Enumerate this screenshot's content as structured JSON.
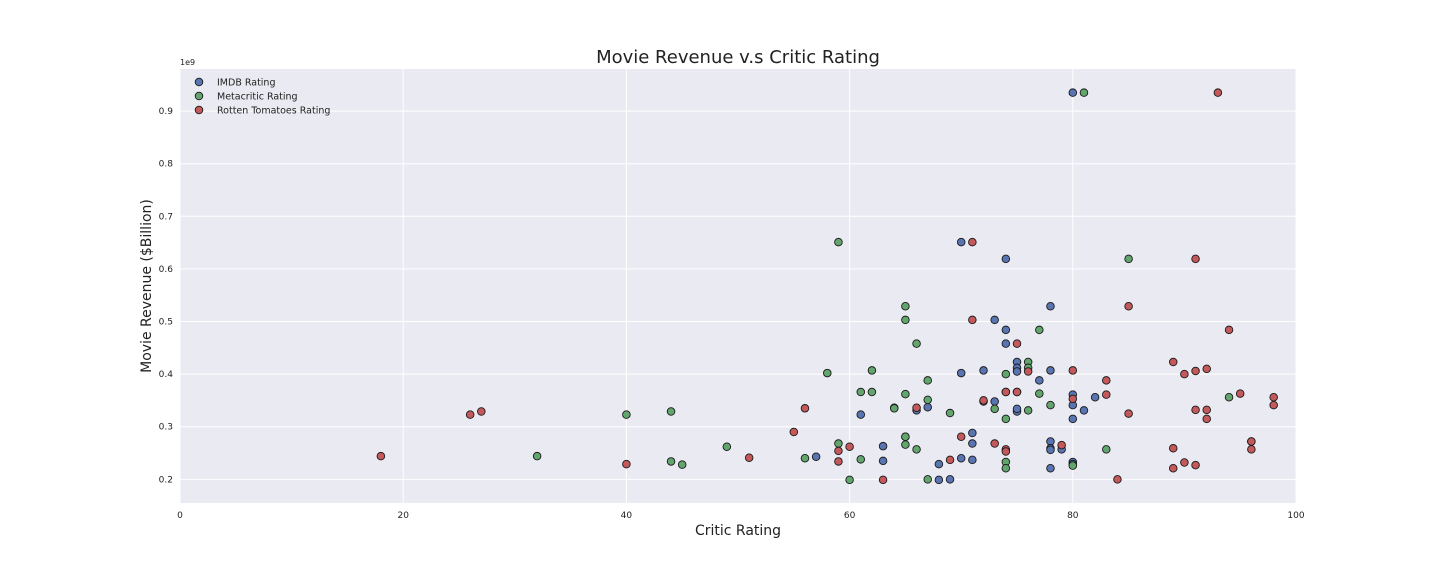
{
  "chart_data": {
    "type": "scatter",
    "title": "Movie Revenue v.s Critic Rating",
    "xlabel": "Critic Rating",
    "ylabel": "Movie Revenue ($Billion)",
    "y_exponent_label": "1e9",
    "xlim": [
      0,
      100
    ],
    "ylim": [
      0.155,
      0.98
    ],
    "x_ticks": [
      0,
      20,
      40,
      60,
      80,
      100
    ],
    "y_ticks": [
      0.2,
      0.3,
      0.4,
      0.5,
      0.6,
      0.7,
      0.8,
      0.9
    ],
    "grid": true,
    "legend_position": "top-left",
    "background_color": "#eaeaf2",
    "series": [
      {
        "name": "IMDB Rating",
        "color": "#5875b2",
        "points": [
          [
            80,
            0.935
          ],
          [
            70,
            0.651
          ],
          [
            74,
            0.619
          ],
          [
            78,
            0.529
          ],
          [
            73,
            0.503
          ],
          [
            74,
            0.484
          ],
          [
            74,
            0.458
          ],
          [
            75,
            0.423
          ],
          [
            75,
            0.412
          ],
          [
            75,
            0.405
          ],
          [
            72,
            0.407
          ],
          [
            70,
            0.402
          ],
          [
            78,
            0.407
          ],
          [
            77,
            0.388
          ],
          [
            74,
            0.366
          ],
          [
            75,
            0.366
          ],
          [
            80,
            0.361
          ],
          [
            82,
            0.356
          ],
          [
            73,
            0.348
          ],
          [
            72,
            0.348
          ],
          [
            80,
            0.341
          ],
          [
            64,
            0.336
          ],
          [
            67,
            0.337
          ],
          [
            66,
            0.331
          ],
          [
            75,
            0.329
          ],
          [
            81,
            0.331
          ],
          [
            61,
            0.323
          ],
          [
            75,
            0.334
          ],
          [
            80,
            0.315
          ],
          [
            71,
            0.288
          ],
          [
            65,
            0.281
          ],
          [
            78,
            0.272
          ],
          [
            71,
            0.268
          ],
          [
            63,
            0.263
          ],
          [
            78,
            0.259
          ],
          [
            78,
            0.256
          ],
          [
            79,
            0.257
          ],
          [
            57,
            0.243
          ],
          [
            70,
            0.24
          ],
          [
            71,
            0.237
          ],
          [
            63,
            0.235
          ],
          [
            80,
            0.233
          ],
          [
            68,
            0.229
          ],
          [
            80,
            0.229
          ],
          [
            78,
            0.221
          ],
          [
            68,
            0.199
          ],
          [
            69,
            0.2
          ]
        ]
      },
      {
        "name": "Metacritic Rating",
        "color": "#62a66e",
        "points": [
          [
            81,
            0.935
          ],
          [
            59,
            0.651
          ],
          [
            85,
            0.619
          ],
          [
            65,
            0.529
          ],
          [
            65,
            0.503
          ],
          [
            77,
            0.484
          ],
          [
            66,
            0.458
          ],
          [
            76,
            0.423
          ],
          [
            76,
            0.412
          ],
          [
            62,
            0.407
          ],
          [
            58,
            0.402
          ],
          [
            74,
            0.4
          ],
          [
            67,
            0.388
          ],
          [
            61,
            0.366
          ],
          [
            62,
            0.366
          ],
          [
            65,
            0.362
          ],
          [
            77,
            0.363
          ],
          [
            94,
            0.356
          ],
          [
            67,
            0.351
          ],
          [
            78,
            0.341
          ],
          [
            64,
            0.335
          ],
          [
            73,
            0.334
          ],
          [
            76,
            0.331
          ],
          [
            69,
            0.326
          ],
          [
            40,
            0.323
          ],
          [
            44,
            0.329
          ],
          [
            74,
            0.315
          ],
          [
            65,
            0.281
          ],
          [
            59,
            0.268
          ],
          [
            65,
            0.266
          ],
          [
            49,
            0.262
          ],
          [
            66,
            0.257
          ],
          [
            83,
            0.257
          ],
          [
            32,
            0.244
          ],
          [
            56,
            0.24
          ],
          [
            61,
            0.238
          ],
          [
            44,
            0.234
          ],
          [
            74,
            0.233
          ],
          [
            45,
            0.228
          ],
          [
            80,
            0.226
          ],
          [
            74,
            0.221
          ],
          [
            60,
            0.199
          ],
          [
            67,
            0.2
          ]
        ]
      },
      {
        "name": "Rotten Tomatoes Rating",
        "color": "#c4595b",
        "points": [
          [
            93,
            0.935
          ],
          [
            71,
            0.651
          ],
          [
            91,
            0.619
          ],
          [
            85,
            0.529
          ],
          [
            71,
            0.503
          ],
          [
            94,
            0.484
          ],
          [
            75,
            0.458
          ],
          [
            89,
            0.423
          ],
          [
            92,
            0.41
          ],
          [
            80,
            0.407
          ],
          [
            76,
            0.405
          ],
          [
            91,
            0.406
          ],
          [
            90,
            0.4
          ],
          [
            83,
            0.388
          ],
          [
            74,
            0.366
          ],
          [
            75,
            0.366
          ],
          [
            95,
            0.363
          ],
          [
            83,
            0.361
          ],
          [
            98,
            0.356
          ],
          [
            80,
            0.353
          ],
          [
            72,
            0.35
          ],
          [
            98,
            0.341
          ],
          [
            56,
            0.335
          ],
          [
            66,
            0.336
          ],
          [
            91,
            0.332
          ],
          [
            92,
            0.332
          ],
          [
            27,
            0.329
          ],
          [
            26,
            0.323
          ],
          [
            85,
            0.325
          ],
          [
            92,
            0.315
          ],
          [
            55,
            0.29
          ],
          [
            70,
            0.281
          ],
          [
            96,
            0.272
          ],
          [
            96,
            0.272
          ],
          [
            73,
            0.268
          ],
          [
            79,
            0.265
          ],
          [
            60,
            0.262
          ],
          [
            89,
            0.259
          ],
          [
            96,
            0.257
          ],
          [
            74,
            0.257
          ],
          [
            59,
            0.254
          ],
          [
            74,
            0.253
          ],
          [
            18,
            0.244
          ],
          [
            51,
            0.241
          ],
          [
            69,
            0.237
          ],
          [
            59,
            0.234
          ],
          [
            90,
            0.232
          ],
          [
            40,
            0.229
          ],
          [
            91,
            0.227
          ],
          [
            89,
            0.221
          ],
          [
            84,
            0.2
          ],
          [
            63,
            0.199
          ]
        ]
      }
    ]
  }
}
